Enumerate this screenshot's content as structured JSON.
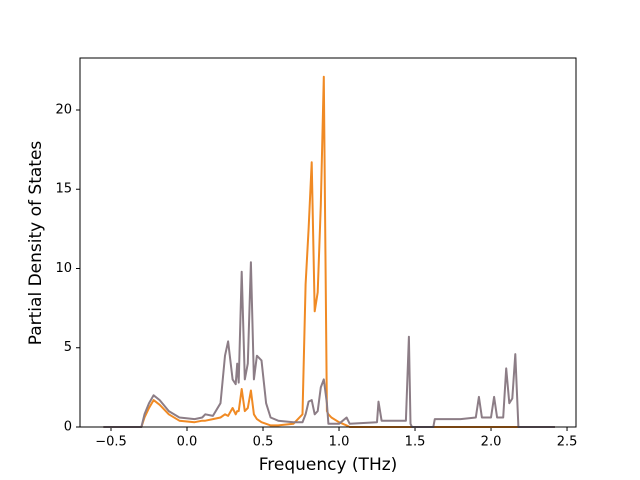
{
  "chart_data": {
    "type": "line",
    "x_label": "Frequency (THz)",
    "y_label": "Partial Density of States",
    "x": [
      -0.55,
      -0.3,
      -0.28,
      -0.25,
      -0.22,
      -0.18,
      -0.12,
      -0.05,
      0.05,
      0.1,
      0.12,
      0.17,
      0.22,
      0.25,
      0.27,
      0.3,
      0.32,
      0.33,
      0.34,
      0.36,
      0.38,
      0.4,
      0.42,
      0.44,
      0.46,
      0.49,
      0.52,
      0.55,
      0.6,
      0.7,
      0.76,
      0.78,
      0.8,
      0.82,
      0.84,
      0.86,
      0.88,
      0.9,
      0.92,
      0.93,
      0.95,
      1.0,
      1.05,
      1.07,
      1.25,
      1.26,
      1.28,
      1.44,
      1.46,
      1.47,
      1.48,
      1.62,
      1.63,
      1.8,
      1.9,
      1.92,
      1.94,
      2.0,
      2.02,
      2.04,
      2.08,
      2.1,
      2.12,
      2.14,
      2.16,
      2.18,
      2.42
    ],
    "series": [
      {
        "color": "#f08a24",
        "values": [
          0,
          0,
          0.6,
          1.2,
          1.7,
          1.4,
          0.8,
          0.4,
          0.3,
          0.4,
          0.4,
          0.5,
          0.6,
          0.8,
          0.7,
          1.2,
          0.8,
          1.0,
          1.0,
          2.4,
          1.0,
          1.2,
          2.3,
          0.8,
          0.5,
          0.3,
          0.2,
          0.1,
          0.1,
          0.2,
          0.8,
          9.0,
          12.5,
          16.7,
          7.3,
          8.5,
          14,
          22.1,
          1.0,
          0.8,
          0.6,
          0.3,
          0.1,
          0,
          0,
          0,
          0,
          0,
          0,
          0,
          0,
          0,
          0,
          0,
          0,
          0,
          0,
          0,
          0,
          0,
          0,
          0,
          0,
          0,
          0,
          0,
          0
        ]
      },
      {
        "color": "#8c7d86",
        "values": [
          0,
          0,
          0.8,
          1.5,
          2.0,
          1.7,
          1.0,
          0.6,
          0.5,
          0.6,
          0.8,
          0.7,
          1.5,
          4.5,
          5.4,
          3.0,
          2.7,
          4.0,
          2.8,
          9.8,
          3.0,
          4.0,
          10.4,
          3.0,
          4.5,
          4.2,
          1.5,
          0.6,
          0.4,
          0.3,
          0.3,
          0.8,
          1.6,
          1.7,
          0.8,
          1.0,
          2.5,
          3.0,
          1.5,
          0.2,
          0.2,
          0.2,
          0.6,
          0.2,
          0.3,
          1.6,
          0.4,
          0.4,
          5.7,
          0.2,
          0,
          0,
          0.5,
          0.5,
          0.6,
          1.9,
          0.6,
          0.6,
          1.9,
          0.6,
          0.6,
          3.7,
          1.5,
          1.8,
          4.6,
          0,
          0
        ]
      }
    ],
    "xlim": [
      -0.704,
      2.559
    ],
    "ylim": [
      0,
      23.28
    ],
    "xticks": [
      {
        "value": -0.5,
        "label": "−0.5"
      },
      {
        "value": 0,
        "label": "0.0"
      },
      {
        "value": 0.5,
        "label": "0.5"
      },
      {
        "value": 1,
        "label": "1.0"
      },
      {
        "value": 1.5,
        "label": "1.5"
      },
      {
        "value": 2,
        "label": "2.0"
      },
      {
        "value": 2.5,
        "label": "2.5"
      }
    ],
    "yticks": [
      0,
      5,
      10,
      15,
      20
    ]
  }
}
